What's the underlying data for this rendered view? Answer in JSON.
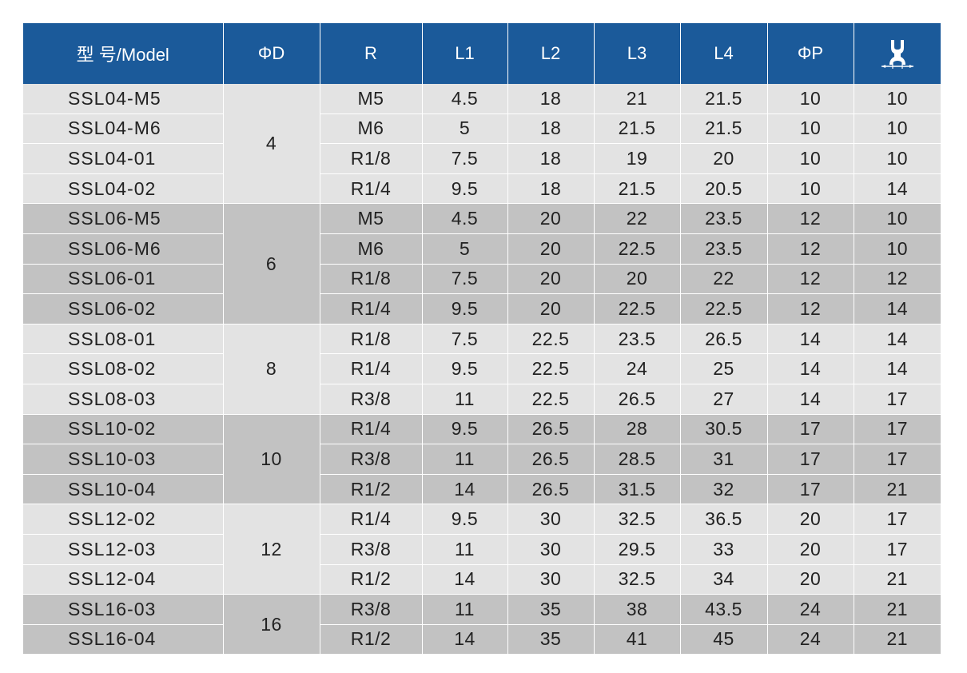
{
  "headers": [
    "型 号/Model",
    "ΦD",
    "R",
    "L1",
    "L2",
    "L3",
    "L4",
    "ΦP"
  ],
  "header_icon": "hex-wrench-icon",
  "colors": {
    "header": "#1b5a9a",
    "band_light": "#e3e3e3",
    "band_dark": "#c2c2c2"
  },
  "groups": [
    {
      "d": "4",
      "rows": [
        {
          "model": "SSL04-M5",
          "r": "M5",
          "l1": "4.5",
          "l2": "18",
          "l3": "21",
          "l4": "21.5",
          "p": "10",
          "hex": "10"
        },
        {
          "model": "SSL04-M6",
          "r": "M6",
          "l1": "5",
          "l2": "18",
          "l3": "21.5",
          "l4": "21.5",
          "p": "10",
          "hex": "10"
        },
        {
          "model": "SSL04-01",
          "r": "R1/8",
          "l1": "7.5",
          "l2": "18",
          "l3": "19",
          "l4": "20",
          "p": "10",
          "hex": "10"
        },
        {
          "model": "SSL04-02",
          "r": "R1/4",
          "l1": "9.5",
          "l2": "18",
          "l3": "21.5",
          "l4": "20.5",
          "p": "10",
          "hex": "14"
        }
      ]
    },
    {
      "d": "6",
      "rows": [
        {
          "model": "SSL06-M5",
          "r": "M5",
          "l1": "4.5",
          "l2": "20",
          "l3": "22",
          "l4": "23.5",
          "p": "12",
          "hex": "10"
        },
        {
          "model": "SSL06-M6",
          "r": "M6",
          "l1": "5",
          "l2": "20",
          "l3": "22.5",
          "l4": "23.5",
          "p": "12",
          "hex": "10"
        },
        {
          "model": "SSL06-01",
          "r": "R1/8",
          "l1": "7.5",
          "l2": "20",
          "l3": "20",
          "l4": "22",
          "p": "12",
          "hex": "12"
        },
        {
          "model": "SSL06-02",
          "r": "R1/4",
          "l1": "9.5",
          "l2": "20",
          "l3": "22.5",
          "l4": "22.5",
          "p": "12",
          "hex": "14"
        }
      ]
    },
    {
      "d": "8",
      "rows": [
        {
          "model": "SSL08-01",
          "r": "R1/8",
          "l1": "7.5",
          "l2": "22.5",
          "l3": "23.5",
          "l4": "26.5",
          "p": "14",
          "hex": "14"
        },
        {
          "model": "SSL08-02",
          "r": "R1/4",
          "l1": "9.5",
          "l2": "22.5",
          "l3": "24",
          "l4": "25",
          "p": "14",
          "hex": "14"
        },
        {
          "model": "SSL08-03",
          "r": "R3/8",
          "l1": "11",
          "l2": "22.5",
          "l3": "26.5",
          "l4": "27",
          "p": "14",
          "hex": "17"
        }
      ]
    },
    {
      "d": "10",
      "rows": [
        {
          "model": "SSL10-02",
          "r": "R1/4",
          "l1": "9.5",
          "l2": "26.5",
          "l3": "28",
          "l4": "30.5",
          "p": "17",
          "hex": "17"
        },
        {
          "model": "SSL10-03",
          "r": "R3/8",
          "l1": "11",
          "l2": "26.5",
          "l3": "28.5",
          "l4": "31",
          "p": "17",
          "hex": "17"
        },
        {
          "model": "SSL10-04",
          "r": "R1/2",
          "l1": "14",
          "l2": "26.5",
          "l3": "31.5",
          "l4": "32",
          "p": "17",
          "hex": "21"
        }
      ]
    },
    {
      "d": "12",
      "rows": [
        {
          "model": "SSL12-02",
          "r": "R1/4",
          "l1": "9.5",
          "l2": "30",
          "l3": "32.5",
          "l4": "36.5",
          "p": "20",
          "hex": "17"
        },
        {
          "model": "SSL12-03",
          "r": "R3/8",
          "l1": "11",
          "l2": "30",
          "l3": "29.5",
          "l4": "33",
          "p": "20",
          "hex": "17"
        },
        {
          "model": "SSL12-04",
          "r": "R1/2",
          "l1": "14",
          "l2": "30",
          "l3": "32.5",
          "l4": "34",
          "p": "20",
          "hex": "21"
        }
      ]
    },
    {
      "d": "16",
      "rows": [
        {
          "model": "SSL16-03",
          "r": "R3/8",
          "l1": "11",
          "l2": "35",
          "l3": "38",
          "l4": "43.5",
          "p": "24",
          "hex": "21"
        },
        {
          "model": "SSL16-04",
          "r": "R1/2",
          "l1": "14",
          "l2": "35",
          "l3": "41",
          "l4": "45",
          "p": "24",
          "hex": "21"
        }
      ]
    }
  ]
}
